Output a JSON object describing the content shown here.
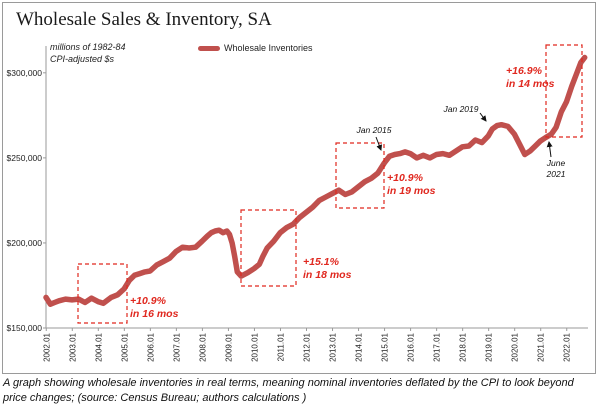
{
  "chart_data": {
    "type": "line",
    "title": "Wholesale Sales & Inventory, SA",
    "ylabel": "millions of 1982-84 CPI-adjusted $s",
    "ylim": [
      150000,
      310000
    ],
    "y_ticks": [
      150000,
      200000,
      250000,
      300000
    ],
    "y_tick_labels": [
      "$150,000",
      "$200,000",
      "$250,000",
      "$300,000"
    ],
    "x_tick_labels": [
      "2002.01",
      "2003.01",
      "2004.01",
      "2005.01",
      "2006.01",
      "2007.01",
      "2008.01",
      "2009.01",
      "2010.01",
      "2011.01",
      "2012.01",
      "2013.01",
      "2014.01",
      "2015.01",
      "2016.01",
      "2017.01",
      "2018.01",
      "2019.01",
      "2020.01",
      "2021.01",
      "2022.01"
    ],
    "x_range": [
      2002.0,
      2022.75
    ],
    "color": "#c0504d",
    "series": [
      {
        "name": "Wholesale Inventories",
        "x": [
          2002.0,
          2002.17,
          2002.33,
          2002.5,
          2002.75,
          2003.0,
          2003.25,
          2003.5,
          2003.75,
          2004.0,
          2004.2,
          2004.33,
          2004.5,
          2004.75,
          2005.0,
          2005.2,
          2005.4,
          2005.6,
          2005.8,
          2006.0,
          2006.25,
          2006.5,
          2006.75,
          2007.0,
          2007.25,
          2007.5,
          2007.75,
          2008.0,
          2008.2,
          2008.35,
          2008.5,
          2008.65,
          2008.8,
          2008.95,
          2009.05,
          2009.15,
          2009.25,
          2009.35,
          2009.5,
          2009.75,
          2010.0,
          2010.2,
          2010.33,
          2010.5,
          2010.75,
          2011.0,
          2011.25,
          2011.5,
          2011.75,
          2012.0,
          2012.25,
          2012.5,
          2012.75,
          2013.0,
          2013.25,
          2013.5,
          2013.75,
          2014.0,
          2014.25,
          2014.5,
          2014.75,
          2015.0,
          2015.2,
          2015.4,
          2015.6,
          2015.8,
          2016.0,
          2016.25,
          2016.5,
          2016.75,
          2017.0,
          2017.25,
          2017.5,
          2017.75,
          2018.0,
          2018.25,
          2018.5,
          2018.75,
          2019.0,
          2019.15,
          2019.33,
          2019.5,
          2019.75,
          2020.0,
          2020.2,
          2020.4,
          2020.6,
          2020.8,
          2021.0,
          2021.2,
          2021.42,
          2021.6,
          2021.8,
          2022.0,
          2022.2,
          2022.4,
          2022.55,
          2022.7
        ],
        "values": [
          168000,
          164000,
          165000,
          166000,
          167000,
          166500,
          167000,
          165000,
          167500,
          165500,
          164500,
          166000,
          168000,
          169500,
          173000,
          178000,
          181000,
          182000,
          183000,
          183500,
          187000,
          189000,
          191000,
          195000,
          197500,
          197000,
          197500,
          201000,
          204000,
          206000,
          207000,
          207500,
          206000,
          207000,
          205000,
          200000,
          192000,
          183000,
          180500,
          182500,
          185000,
          187500,
          192000,
          197000,
          201000,
          206000,
          209000,
          211000,
          215000,
          218000,
          221000,
          225000,
          227000,
          229000,
          231000,
          228500,
          230000,
          233000,
          236000,
          238000,
          241000,
          247000,
          251000,
          252000,
          252500,
          253500,
          252500,
          250000,
          251500,
          250000,
          252000,
          252500,
          251500,
          254000,
          256500,
          257000,
          260500,
          259000,
          263000,
          267000,
          269000,
          269500,
          268500,
          264000,
          258000,
          252000,
          254000,
          257000,
          260000,
          262000,
          264000,
          268000,
          277000,
          283000,
          292000,
          300000,
          306000,
          309000
        ]
      }
    ],
    "annotations": [
      {
        "lines": [
          "+10.9%",
          "in 16 mos"
        ]
      },
      {
        "lines": [
          "+15.1%",
          "in 18 mos"
        ]
      },
      {
        "lines": [
          "+10.9%",
          "in 19 mos"
        ]
      },
      {
        "lines": [
          "+16.9%",
          "in 14 mos"
        ]
      },
      {
        "lines": [
          "Jan 2015"
        ]
      },
      {
        "lines": [
          "Jan 2019"
        ]
      },
      {
        "lines": [
          "June",
          "2021"
        ]
      }
    ]
  },
  "legend": {
    "label": "Wholesale Inventories"
  },
  "unit_note": {
    "line1": "millions of 1982-84",
    "line2": "CPI-adjusted $s"
  },
  "caption": "A graph showing wholesale inventories in real terms, meaning nominal inventories deflated by the CPI to look beyond price changes; (source: Census Bureau; authors calculations )"
}
